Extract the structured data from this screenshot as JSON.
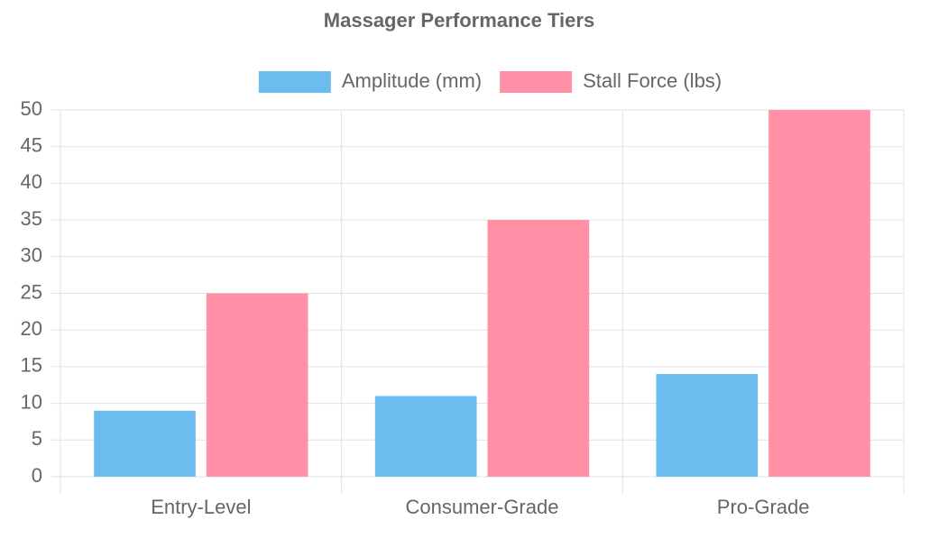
{
  "chart_data": {
    "type": "bar",
    "title": "Massager Performance Tiers",
    "categories": [
      "Entry-Level",
      "Consumer-Grade",
      "Pro-Grade"
    ],
    "series": [
      {
        "name": "Amplitude (mm)",
        "color": "#6dbcef",
        "values": [
          9,
          11,
          14
        ]
      },
      {
        "name": "Stall Force (lbs)",
        "color": "#ff90a5",
        "values": [
          25,
          35,
          50
        ]
      }
    ],
    "ylim": [
      0,
      50
    ],
    "yticks": [
      0,
      5,
      10,
      15,
      20,
      25,
      30,
      35,
      40,
      45,
      50
    ],
    "grid": true,
    "legend": "top"
  }
}
